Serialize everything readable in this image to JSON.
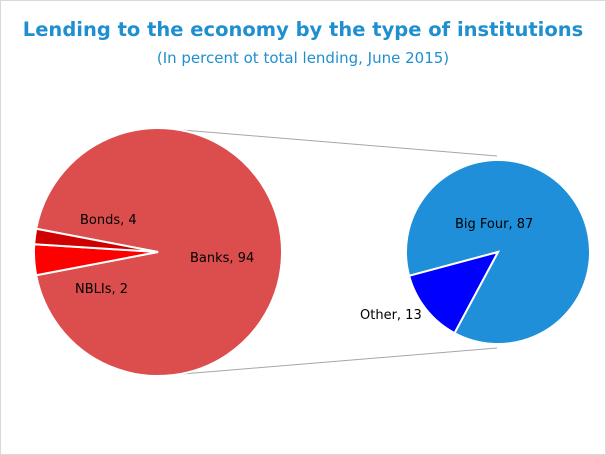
{
  "title": "Lending to the economy by the type of institutions",
  "subtitle": "(In percent ot total lending, June 2015)",
  "colors": {
    "title": "#1f8fcf",
    "banks": "#dc4d4d",
    "bonds": "#ff0000",
    "nblis": "#d00000",
    "big_four": "#1e8fd8",
    "other": "#0000ff",
    "connector": "#a6a6a6"
  },
  "chart_data": [
    {
      "type": "pie",
      "series": [
        {
          "label": "Banks",
          "value": 94,
          "text": "Banks, 94"
        },
        {
          "label": "Bonds",
          "value": 4,
          "text": "Bonds, 4"
        },
        {
          "label": "NBLIs",
          "value": 2,
          "text": "NBLIs, 2"
        }
      ]
    },
    {
      "type": "pie",
      "series": [
        {
          "label": "Big Four",
          "value": 87,
          "text": "Big Four, 87"
        },
        {
          "label": "Other",
          "value": 13,
          "text": "Other, 13"
        }
      ]
    }
  ]
}
